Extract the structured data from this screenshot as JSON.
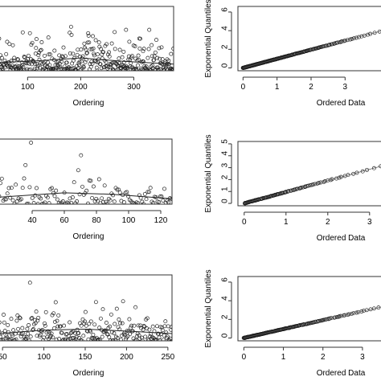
{
  "chart_data": [
    {
      "type": "scatter",
      "xlabel": "Ordering",
      "xticks": [
        100,
        200,
        300
      ],
      "yticks": [],
      "xlim": [
        45,
        375
      ],
      "ylim": [
        0,
        6.8
      ],
      "n_points": 370,
      "smooth_curve": [
        [
          45,
          0.85
        ],
        [
          120,
          1.05
        ],
        [
          200,
          1.35
        ],
        [
          280,
          1.0
        ],
        [
          375,
          0.7
        ]
      ]
    },
    {
      "type": "scatter",
      "xlabel": "Exponential Quantiles",
      "xlabel_note": "",
      "xlabel_bottom": "Ordered Data",
      "ylabel": "Exponential Quantiles",
      "xticks": [
        0,
        1,
        2,
        3
      ],
      "yticks": [
        0,
        2,
        4,
        6
      ],
      "xlim": [
        -0.15,
        4.15
      ],
      "ylim": [
        -0.3,
        6.6
      ],
      "n_points": 370,
      "reference_line": [
        [
          0,
          0
        ],
        [
          4.1,
          4.0
        ]
      ]
    },
    {
      "type": "scatter",
      "xlabel": "Ordering",
      "xticks": [
        40,
        60,
        80,
        100,
        120
      ],
      "yticks": [],
      "xlim": [
        19,
        127
      ],
      "ylim": [
        0,
        6.6
      ],
      "n_points": 125,
      "smooth_curve": [
        [
          19,
          0.7
        ],
        [
          60,
          1.15
        ],
        [
          90,
          1.0
        ],
        [
          127,
          0.55
        ]
      ]
    },
    {
      "type": "scatter",
      "xlabel_bottom": "Ordered Data",
      "ylabel": "Exponential Quantiles",
      "xticks": [
        0,
        1,
        2,
        3
      ],
      "yticks": [
        0,
        1,
        2,
        3,
        4,
        5
      ],
      "xlim": [
        -0.15,
        3.35
      ],
      "ylim": [
        -0.2,
        5.2
      ],
      "n_points": 125,
      "reference_line": [
        [
          0,
          0
        ],
        [
          3.3,
          3.15
        ]
      ]
    },
    {
      "type": "scatter",
      "xlabel": "Ordering",
      "xticks": [
        50,
        100,
        150,
        200,
        250
      ],
      "yticks": [],
      "xlim": [
        45,
        255
      ],
      "ylim": [
        0,
        6.8
      ],
      "n_points": 250,
      "smooth_curve": [
        [
          45,
          0.75
        ],
        [
          100,
          1.1
        ],
        [
          150,
          1.2
        ],
        [
          200,
          1.0
        ],
        [
          255,
          0.75
        ]
      ]
    },
    {
      "type": "scatter",
      "xlabel_bottom": "Ordered Data",
      "ylabel": "Exponential Quantiles",
      "xticks": [
        0,
        1,
        2,
        3
      ],
      "yticks": [
        0,
        2,
        4,
        6
      ],
      "xlim": [
        -0.15,
        3.55
      ],
      "ylim": [
        -0.3,
        6.6
      ],
      "n_points": 250,
      "reference_line": [
        [
          0,
          0
        ],
        [
          3.55,
          3.4
        ]
      ]
    }
  ]
}
